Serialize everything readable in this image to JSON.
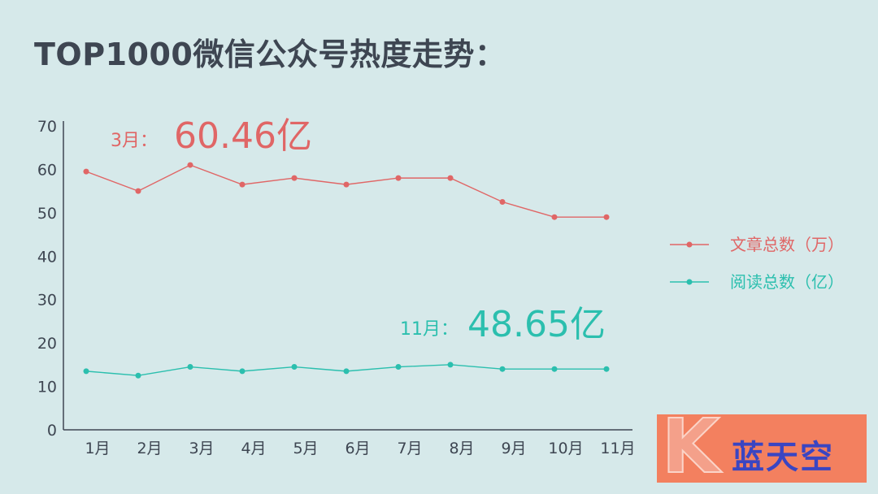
{
  "title": "TOP1000微信公众号热度走势：",
  "colors": {
    "series1": "#e06666",
    "series2": "#2bbfae",
    "axis": "#3e4652",
    "background": "#d6e9ea"
  },
  "chart_data": {
    "type": "line",
    "categories": [
      "1月",
      "2月",
      "3月",
      "4月",
      "5月",
      "6月",
      "7月",
      "8月",
      "9月",
      "10月",
      "11月"
    ],
    "ylim": [
      0,
      70
    ],
    "yticks": [
      0,
      10,
      20,
      30,
      40,
      50,
      60,
      70
    ],
    "grid": false,
    "legend_position": "right",
    "series": [
      {
        "name": "文章总数（万）",
        "values": [
          59.5,
          55,
          61,
          56.5,
          58,
          56.5,
          58,
          58,
          52.5,
          49,
          49
        ]
      },
      {
        "name": "阅读总数（亿）",
        "values": [
          13.5,
          12.5,
          14.5,
          13.5,
          14.5,
          13.5,
          14.5,
          15,
          14,
          14,
          14
        ]
      }
    ],
    "annotations": [
      {
        "label": "3月：",
        "value": "60.46亿"
      },
      {
        "label": "11月：",
        "value": "48.65亿"
      }
    ]
  },
  "logo": {
    "letter": "K",
    "text": "蓝天空"
  }
}
